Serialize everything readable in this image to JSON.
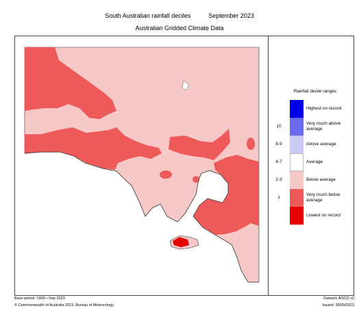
{
  "title": {
    "main": "South Australian rainfall deciles",
    "period": "September 2023",
    "subtitle": "Australian Gridded Climate Data"
  },
  "legend": {
    "title": "Rainfall decile ranges",
    "items": [
      {
        "range": "",
        "label": "Highest on record",
        "color": "#0000e6"
      },
      {
        "range": "10",
        "label": "Very much above average",
        "color": "#6a6aee"
      },
      {
        "range": "8-9",
        "label": "Above average",
        "color": "#c9c9f5"
      },
      {
        "range": "4-7",
        "label": "Average",
        "color": "#ffffff"
      },
      {
        "range": "2-3",
        "label": "Below average",
        "color": "#f6c8c8"
      },
      {
        "range": "1",
        "label": "Very much below average",
        "color": "#ee5a5a"
      },
      {
        "range": "",
        "label": "Lowest on record",
        "color": "#e60000"
      }
    ]
  },
  "map": {
    "region": "South Australia",
    "colors": {
      "below_average": "#f6c8c8",
      "very_much_below_average": "#ee5a5a",
      "lowest_on_record": "#e60000",
      "water": "#ffffff"
    }
  },
  "footer": {
    "base_period": "Base period: 1900—Sep 2023",
    "dataset": "Dataset: AGCD v2",
    "copyright": "© Commonwealth of Australia 2023, Bureau of Meteorology",
    "issued": "Issued: 30/09/2023"
  }
}
